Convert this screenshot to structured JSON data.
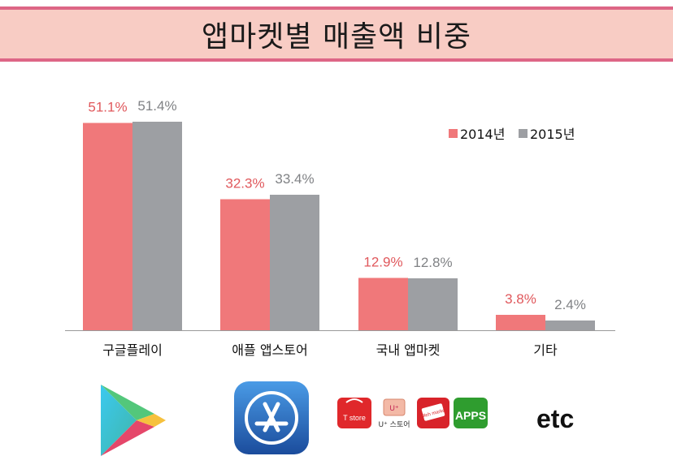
{
  "title": "앱마켓별 매출액 비중",
  "chart_data": {
    "type": "bar",
    "title": "앱마켓별 매출액 비중",
    "categories": [
      "구글플레이",
      "애플 앱스토어",
      "국내 앱마켓",
      "기타"
    ],
    "series": [
      {
        "name": "2014년",
        "values": [
          51.1,
          32.3,
          12.9,
          3.8
        ],
        "labels": [
          "51.1%",
          "32.3%",
          "12.9%",
          "3.8%"
        ],
        "color": "#f0787a"
      },
      {
        "name": "2015년",
        "values": [
          51.4,
          33.4,
          12.8,
          2.4
        ],
        "labels": [
          "51.4%",
          "33.4%",
          "12.8%",
          "2.4%"
        ],
        "color": "#9d9fa3"
      }
    ],
    "ylim": [
      0,
      60
    ],
    "grid": false,
    "legend": "top-right"
  },
  "label_colors": {
    "2014년": "#e0585c",
    "2015年": "#808285"
  },
  "logos": {
    "google_play": "google-play-icon",
    "app_store": "app-store-icon",
    "domestic": {
      "tstore": "T store",
      "ustore": "U⁺ 스토어",
      "ollehmarket": "olleh market",
      "apps": "APPS"
    },
    "etc": "etc"
  }
}
